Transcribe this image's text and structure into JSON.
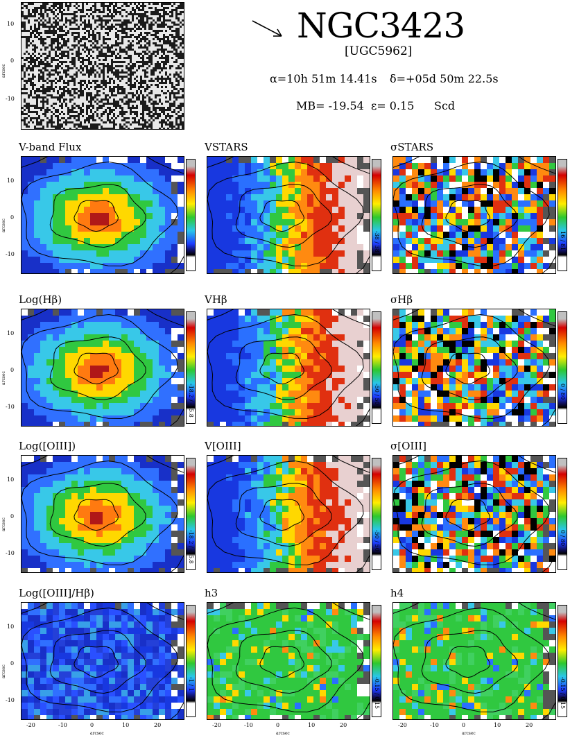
{
  "header": {
    "galaxy_name": "NGC3423",
    "ugc_name": "[UGC5962]",
    "ra": "α=10h 51m 14.41s",
    "dec": "δ=+05d 50m 22.5s",
    "mb": "MB= -19.54",
    "ellipticity": "ε= 0.15",
    "type": "Scd",
    "arrow_icon": "north-arrow-icon"
  },
  "axes": {
    "ylabel": "arcsec",
    "xlabel": "arcsec",
    "y_ticks": [
      "10",
      "0",
      "-10"
    ],
    "x_ticks": [
      "-20",
      "-10",
      "0",
      "10",
      "20"
    ]
  },
  "panels": [
    {
      "title": "V-band Flux",
      "range": "",
      "palette": "flux"
    },
    {
      "title": "VSTARS",
      "range": "-38 / 38",
      "palette": "velocity"
    },
    {
      "title": "σSTARS",
      "range": "16 / 81",
      "palette": "dispersion"
    },
    {
      "title": "Log(Hβ)",
      "range": "-18.2 / -15.8",
      "palette": "flux"
    },
    {
      "title": "VHβ",
      "range": "-50 / 50",
      "palette": "velocity"
    },
    {
      "title": "σHβ",
      "range": "0 / 80",
      "palette": "dispersion"
    },
    {
      "title": "Log([OIII])",
      "range": "-18.2 / -15.8",
      "palette": "flux"
    },
    {
      "title": "V[OIII]",
      "range": "-50 / 50",
      "palette": "velocity"
    },
    {
      "title": "σ[OIII]",
      "range": "0 / 80",
      "palette": "dispersion"
    },
    {
      "title": "Log([OIII]/Hβ)",
      "range": "-1 / 1",
      "palette": "ratio"
    },
    {
      "title": "h3",
      "range": "-0.15 / 0.15",
      "palette": "moment"
    },
    {
      "title": "h4",
      "range": "-0.15 / 0.15",
      "palette": "moment"
    }
  ],
  "colors": {
    "flux_center": "#c02020",
    "velocity_neg": "#1d3cff",
    "velocity_pos": "#e03010",
    "ratio": "#2040d0",
    "moment": "#30c830",
    "masked": "#555555"
  }
}
